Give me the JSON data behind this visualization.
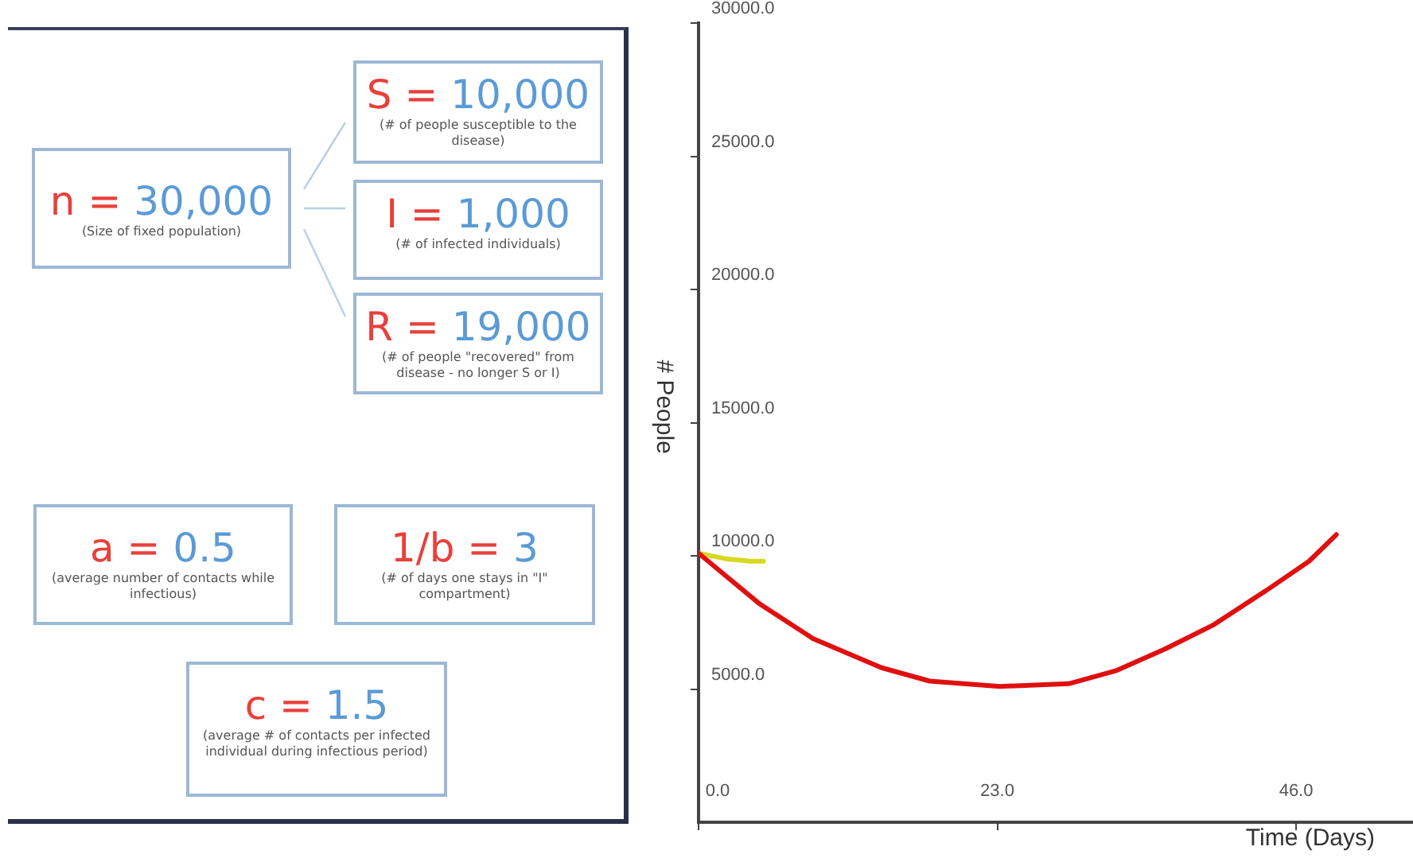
{
  "chart_data": [
    {
      "type": "other",
      "annotations": [
        "n = 30,000",
        "(Size of fixed population)",
        "S = 10,000",
        "(# of people susceptible to the disease)",
        "I = 1,000",
        "(# of infected individuals)",
        "R = 19,000",
        "(# of people \"recovered\" from disease - no longer S or I)",
        "a = 0.5",
        "(average number of contacts while infectious)",
        "1/b = 3",
        "(# of days one stays in \"I\" compartment)",
        "c = 1.5",
        "(average # of contacts per infected individual during infectious period)"
      ]
    },
    {
      "type": "line",
      "xlabel": "Time (Days)",
      "ylabel": "# People",
      "xlim": [
        0,
        55
      ],
      "ylim": [
        0,
        30000
      ],
      "xticks": [
        {
          "value": 0,
          "label": "0.0"
        },
        {
          "value": 23,
          "label": "23.0"
        },
        {
          "value": 46,
          "label": "46.0"
        }
      ],
      "yticks": [
        {
          "value": 5000,
          "label": "5000.0"
        },
        {
          "value": 10000,
          "label": "10000.0"
        },
        {
          "value": 15000,
          "label": "15000.0"
        },
        {
          "value": 20000,
          "label": "20000.0"
        },
        {
          "value": 25000,
          "label": "25000.0"
        },
        {
          "value": 30000,
          "label": "30000.0"
        }
      ],
      "grid": false,
      "legend": false,
      "marker": "none",
      "line_style": "solid",
      "series": [
        {
          "color": "#e01010",
          "x": [
            0,
            4.7,
            8.8,
            14.1,
            17.8,
            23.2,
            28.5,
            32.2,
            35.9,
            39.6,
            43.7,
            47.0,
            49.1
          ],
          "values": [
            10100,
            8200,
            6900,
            5800,
            5300,
            5100,
            5200,
            5700,
            6500,
            7400,
            8700,
            9800,
            10800
          ]
        },
        {
          "color": "#d8d820",
          "x": [
            0,
            2,
            4,
            5
          ],
          "values": [
            10100,
            9900,
            9800,
            9800
          ]
        }
      ]
    }
  ]
}
